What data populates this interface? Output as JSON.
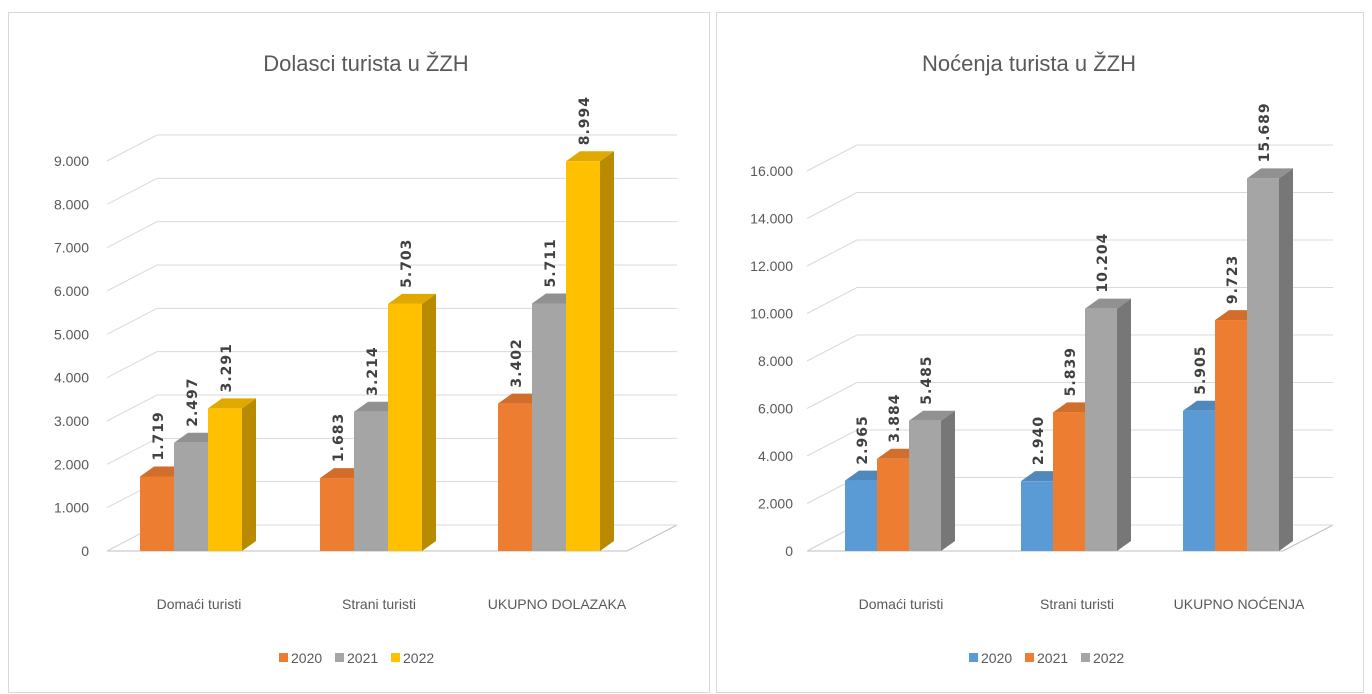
{
  "chart_data": [
    {
      "type": "bar",
      "title": "Dolasci turista u ŽZH",
      "categories": [
        "Domaći turisti",
        "Strani turisti",
        "UKUPNO DOLAZAKA"
      ],
      "series": [
        {
          "name": "2020",
          "color": "#ED7D31",
          "values": [
            1719,
            1683,
            3402
          ],
          "labels": [
            "1.719",
            "1.683",
            "3.402"
          ]
        },
        {
          "name": "2021",
          "color": "#A5A5A5",
          "values": [
            2497,
            3214,
            5711
          ],
          "labels": [
            "2.497",
            "3.214",
            "5.711"
          ]
        },
        {
          "name": "2022",
          "color": "#FFC000",
          "values": [
            3291,
            5703,
            8994
          ],
          "labels": [
            "3.291",
            "5.703",
            "8.994"
          ]
        }
      ],
      "ylim": [
        0,
        9000
      ],
      "y_ticks": [
        "0",
        "1.000",
        "2.000",
        "3.000",
        "4.000",
        "5.000",
        "6.000",
        "7.000",
        "8.000",
        "9.000"
      ],
      "grid": true,
      "legend_position": "bottom",
      "style": "3d-clustered-column"
    },
    {
      "type": "bar",
      "title": "Noćenja turista u ŽZH",
      "categories": [
        "Domaći turisti",
        "Strani turisti",
        "UKUPNO NOĆENJA"
      ],
      "series": [
        {
          "name": "2020",
          "color": "#5B9BD5",
          "values": [
            2965,
            2940,
            5905
          ],
          "labels": [
            "2.965",
            "2.940",
            "5.905"
          ]
        },
        {
          "name": "2021",
          "color": "#ED7D31",
          "values": [
            3884,
            5839,
            9723
          ],
          "labels": [
            "3.884",
            "5.839",
            "9.723"
          ]
        },
        {
          "name": "2022",
          "color": "#A5A5A5",
          "values": [
            5485,
            10204,
            15689
          ],
          "labels": [
            "5.485",
            "10.204",
            "15.689"
          ]
        }
      ],
      "ylim": [
        0,
        16000
      ],
      "y_ticks": [
        "0",
        "2.000",
        "4.000",
        "6.000",
        "8.000",
        "10.000",
        "12.000",
        "14.000",
        "16.000"
      ],
      "grid": true,
      "legend_position": "bottom",
      "style": "3d-clustered-column"
    }
  ]
}
